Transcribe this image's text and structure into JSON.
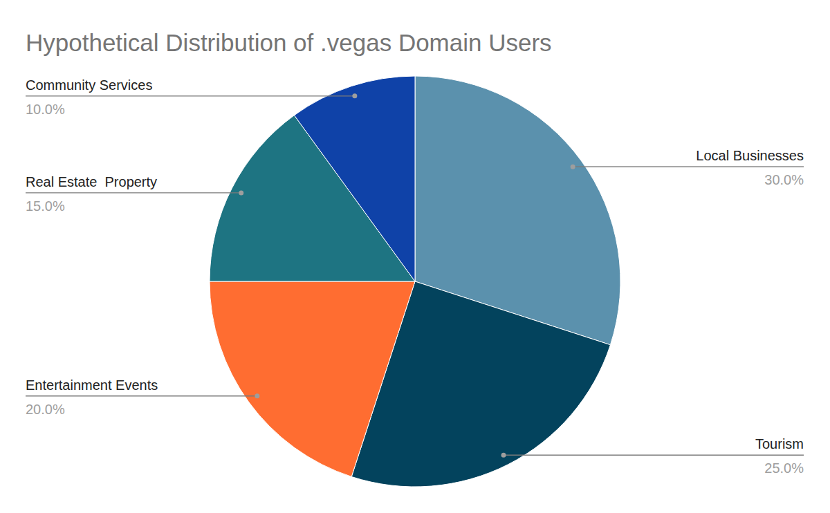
{
  "chart_data": {
    "type": "pie",
    "title": "Hypothetical Distribution of .vegas Domain Users",
    "categories": [
      "Local Businesses",
      "Tourism",
      "Entertainment Events",
      "Real Estate  Property",
      "Community Services"
    ],
    "values": [
      30,
      25,
      20,
      15,
      10
    ],
    "value_labels": [
      "30.0%",
      "25.0%",
      "20.0%",
      "15.0%",
      "10.0%"
    ],
    "colors": [
      "#5b91ad",
      "#03435d",
      "#ff6d31",
      "#1e7482",
      "#0f42a8"
    ],
    "data_labels": true
  }
}
